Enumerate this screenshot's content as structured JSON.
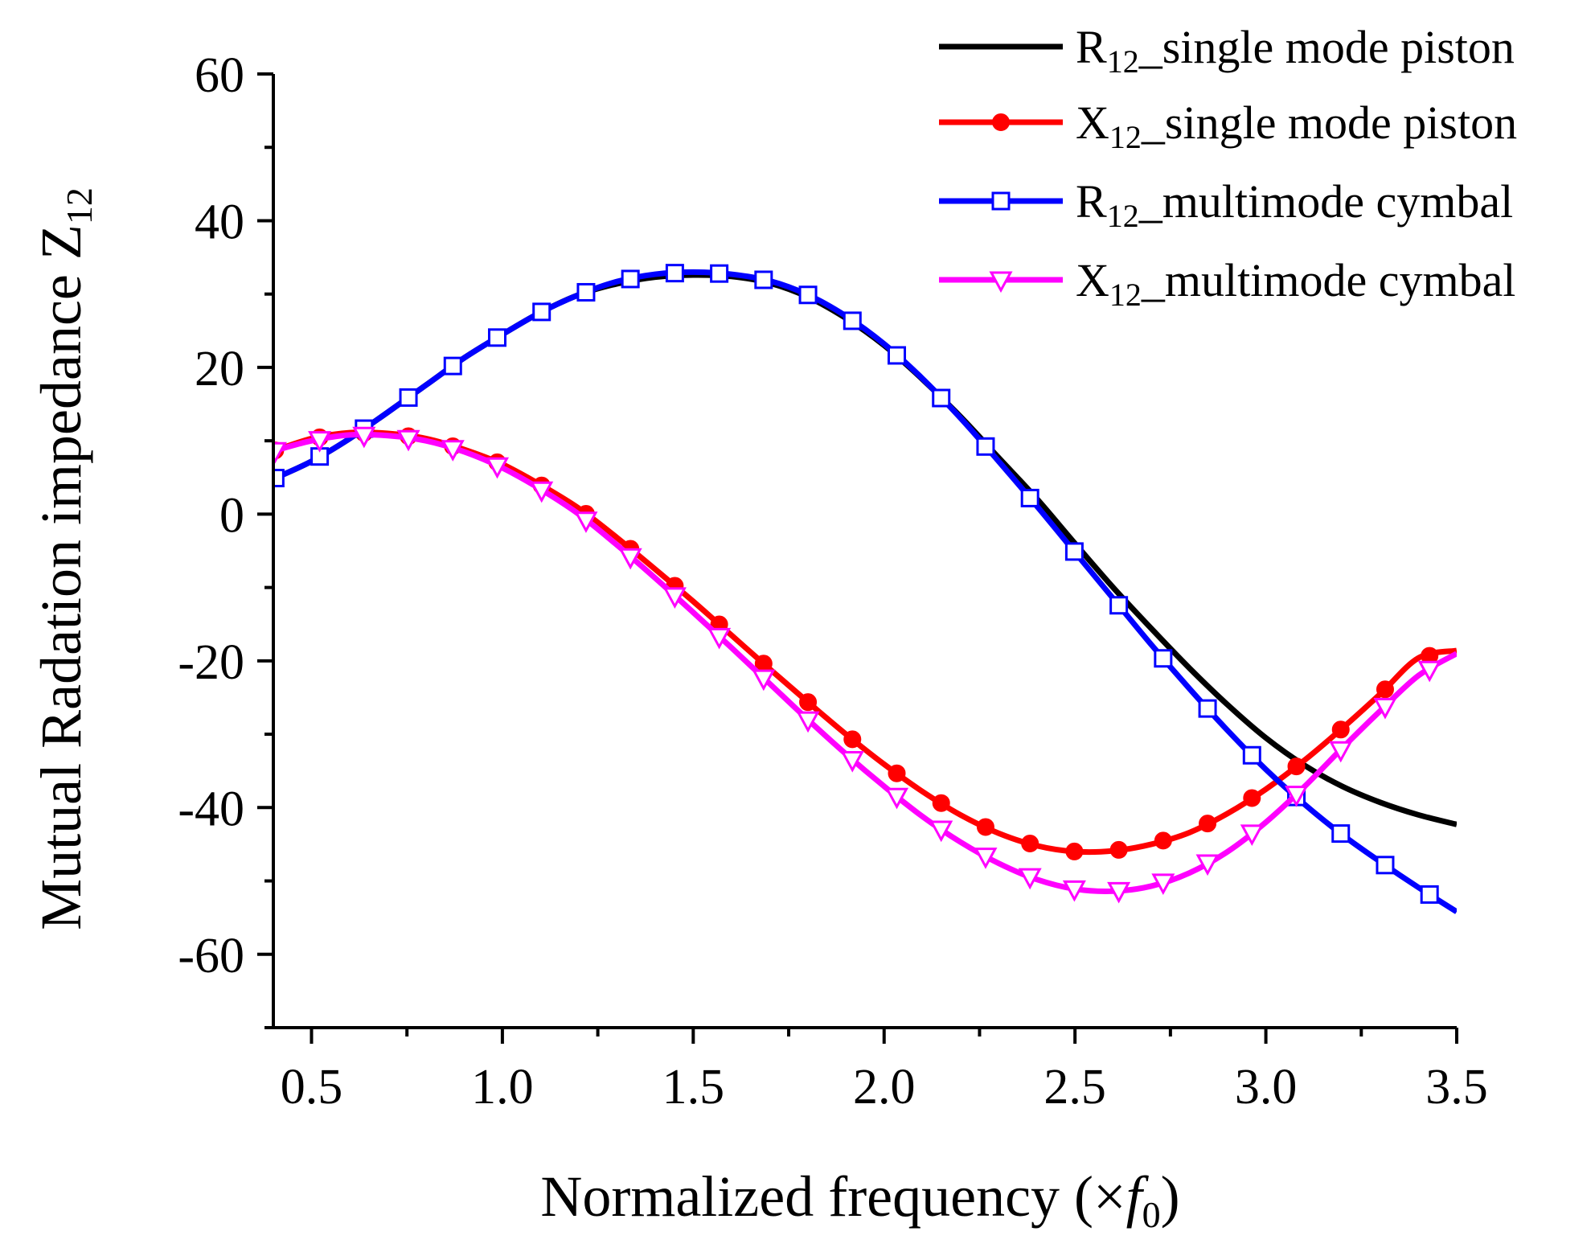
{
  "chart_data": {
    "type": "line",
    "title": "",
    "xlabel": "Normalized frequency (×f0)",
    "ylabel": "Mutual Radation impedance Z12",
    "xlim": [
      0.4,
      3.5
    ],
    "ylim": [
      -70,
      60
    ],
    "x_ticks": [
      0.5,
      1.0,
      1.5,
      2.0,
      2.5,
      3.0,
      3.5
    ],
    "y_ticks": [
      60,
      40,
      20,
      0,
      -20,
      -40,
      -60
    ],
    "x_tick_labels": [
      "0.5",
      "1.0",
      "1.5",
      "2.0",
      "2.5",
      "3.0",
      "3.5"
    ],
    "y_tick_labels": [
      "60",
      "40",
      "20",
      "0",
      "-20",
      "-40",
      "-60"
    ],
    "grid": false,
    "legend_position": "top-right",
    "series": [
      {
        "name": "R12_single mode piston",
        "legend_main": "R",
        "legend_sub": "12",
        "legend_rest": "_single mode piston",
        "color": "#000000",
        "marker": "none",
        "x": [
          0.4,
          0.5,
          0.6,
          0.7,
          0.8,
          0.9,
          1.0,
          1.1,
          1.2,
          1.3,
          1.4,
          1.5,
          1.6,
          1.7,
          1.8,
          1.9,
          2.0,
          2.1,
          2.2,
          2.3,
          2.4,
          2.5,
          2.6,
          2.7,
          2.8,
          2.9,
          3.0,
          3.1,
          3.2,
          3.3,
          3.4,
          3.5
        ],
        "values": [
          4.8,
          7.2,
          10.3,
          13.9,
          17.6,
          21.3,
          24.5,
          27.5,
          29.9,
          31.4,
          32.3,
          32.6,
          32.4,
          31.5,
          29.6,
          26.7,
          23.0,
          18.4,
          13.3,
          7.7,
          2.1,
          -4.0,
          -10.0,
          -15.6,
          -21.0,
          -26.0,
          -30.5,
          -34.2,
          -37.1,
          -39.3,
          -41.0,
          -42.3
        ]
      },
      {
        "name": "X12_single mode piston",
        "legend_main": "X",
        "legend_sub": "12",
        "legend_rest": "_single mode piston",
        "color": "#ff0000",
        "marker": "filled-circle",
        "x": [
          0.4,
          0.5,
          0.6,
          0.7,
          0.8,
          0.9,
          1.0,
          1.1,
          1.2,
          1.3,
          1.4,
          1.5,
          1.6,
          1.7,
          1.8,
          1.9,
          2.0,
          2.1,
          2.2,
          2.3,
          2.4,
          2.5,
          2.6,
          2.7,
          2.8,
          2.9,
          3.0,
          3.1,
          3.2,
          3.3,
          3.4,
          3.5
        ],
        "values": [
          8.6,
          10.3,
          11.1,
          11.0,
          10.3,
          8.8,
          6.8,
          4.0,
          0.8,
          -3.2,
          -7.5,
          -11.9,
          -16.5,
          -21.1,
          -25.6,
          -30.0,
          -34.1,
          -37.8,
          -41.0,
          -43.5,
          -45.2,
          -46.0,
          -45.9,
          -45.0,
          -43.4,
          -40.8,
          -37.5,
          -33.6,
          -29.2,
          -24.5,
          -19.6,
          -18.6
        ]
      },
      {
        "name": "R12_multimode cymbal",
        "legend_main": "R",
        "legend_sub": "12",
        "legend_rest": "_multimode cymbal",
        "color": "#0000ff",
        "marker": "open-square",
        "x": [
          0.4,
          0.5,
          0.6,
          0.7,
          0.8,
          0.9,
          1.0,
          1.1,
          1.2,
          1.3,
          1.4,
          1.5,
          1.6,
          1.7,
          1.8,
          1.9,
          2.0,
          2.1,
          2.2,
          2.3,
          2.4,
          2.5,
          2.6,
          2.7,
          2.8,
          2.9,
          3.0,
          3.1,
          3.2,
          3.3,
          3.4,
          3.5
        ],
        "values": [
          4.8,
          7.2,
          10.3,
          13.9,
          17.6,
          21.3,
          24.5,
          27.5,
          29.9,
          31.7,
          32.7,
          33.0,
          32.7,
          31.8,
          29.9,
          27.0,
          23.2,
          18.5,
          13.1,
          7.2,
          1.1,
          -5.2,
          -11.5,
          -17.8,
          -23.8,
          -29.5,
          -34.8,
          -39.5,
          -43.7,
          -47.4,
          -50.9,
          -54.2
        ]
      },
      {
        "name": "X12_multimode cymbal",
        "legend_main": "X",
        "legend_sub": "12",
        "legend_rest": "_multimode cymbal",
        "color": "#ff00ff",
        "marker": "open-triangle-down",
        "x": [
          0.4,
          0.5,
          0.6,
          0.7,
          0.8,
          0.9,
          1.0,
          1.1,
          1.2,
          1.3,
          1.4,
          1.5,
          1.6,
          1.7,
          1.8,
          1.9,
          2.0,
          2.1,
          2.2,
          2.3,
          2.4,
          2.5,
          2.6,
          2.7,
          2.8,
          2.9,
          3.0,
          3.1,
          3.2,
          3.3,
          3.4,
          3.5
        ],
        "values": [
          8.6,
          10.0,
          10.8,
          10.7,
          10.0,
          8.5,
          6.3,
          3.4,
          0.0,
          -4.2,
          -8.7,
          -13.4,
          -18.2,
          -23.1,
          -28.0,
          -32.7,
          -37.1,
          -41.2,
          -44.7,
          -47.6,
          -49.8,
          -51.1,
          -51.4,
          -50.7,
          -48.9,
          -46.0,
          -42.0,
          -37.2,
          -31.9,
          -26.8,
          -22.0,
          -19.0
        ]
      }
    ]
  }
}
